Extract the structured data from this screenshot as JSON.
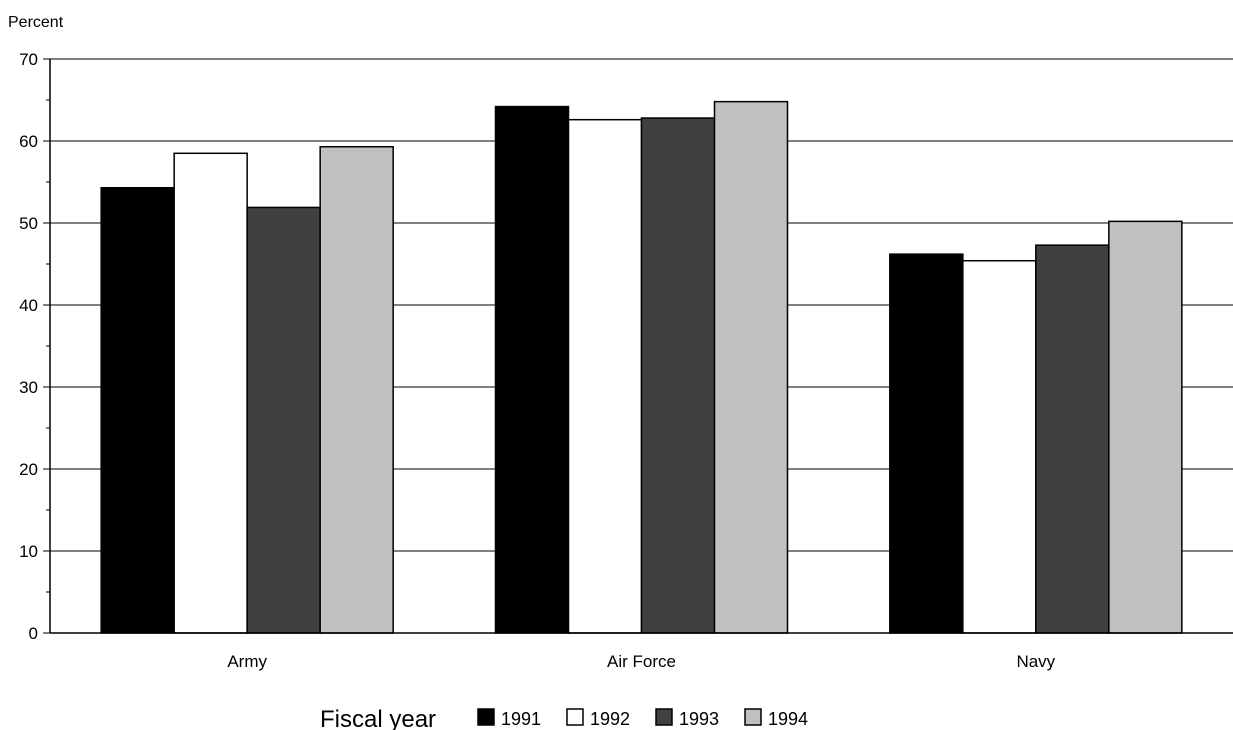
{
  "chart_data": {
    "type": "bar",
    "title": "",
    "ylabel": "Percent",
    "xlabel": "",
    "ylim": [
      0,
      70
    ],
    "yticks": [
      0,
      10,
      20,
      30,
      40,
      50,
      60,
      70
    ],
    "grid": true,
    "categories": [
      "Army",
      "Air Force",
      "Navy"
    ],
    "legend_title": "Fiscal year",
    "legend_placement": "bottom",
    "series": [
      {
        "name": "1991",
        "color": "#000000",
        "values": [
          54.3,
          64.2,
          46.2
        ]
      },
      {
        "name": "1992",
        "color": "#ffffff",
        "values": [
          58.5,
          62.6,
          45.4
        ]
      },
      {
        "name": "1993",
        "color": "#404040",
        "values": [
          51.9,
          62.8,
          47.3
        ]
      },
      {
        "name": "1994",
        "color": "#c0c0c0",
        "values": [
          59.3,
          64.8,
          50.2
        ]
      }
    ]
  }
}
